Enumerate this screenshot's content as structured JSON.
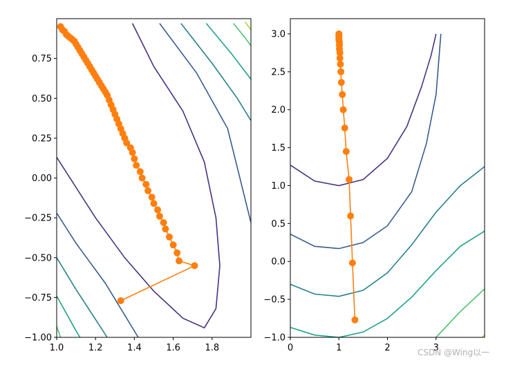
{
  "chart_data": [
    {
      "type": "line",
      "title": "",
      "xlabel": "",
      "ylabel": "",
      "xlim": [
        1.0,
        2.0
      ],
      "ylim": [
        -1.0,
        1.0
      ],
      "xticks": [
        1.0,
        1.2,
        1.4,
        1.6,
        1.8
      ],
      "xtick_labels": [
        "1.0",
        "1.2",
        "1.4",
        "1.6",
        "1.8"
      ],
      "yticks": [
        -1.0,
        -0.75,
        -0.5,
        -0.25,
        0.0,
        0.25,
        0.5,
        0.75
      ],
      "ytick_labels": [
        "−1.00",
        "−0.75",
        "−0.50",
        "−0.25",
        "0.00",
        "0.25",
        "0.50",
        "0.75"
      ],
      "grid": false,
      "contours": [
        {
          "color": "#46327e",
          "points": [
            [
              1.0,
              0.13
            ],
            [
              1.2,
              -0.25
            ],
            [
              1.35,
              -0.5
            ],
            [
              1.5,
              -0.71
            ],
            [
              1.65,
              -0.88
            ],
            [
              1.76,
              -0.94
            ],
            [
              1.82,
              -0.82
            ],
            [
              1.84,
              -0.55
            ],
            [
              1.82,
              -0.25
            ],
            [
              1.76,
              0.1
            ],
            [
              1.65,
              0.42
            ],
            [
              1.5,
              0.7
            ],
            [
              1.39,
              0.97
            ]
          ]
        },
        {
          "color": "#365c8d",
          "points": [
            [
              1.0,
              -0.22
            ],
            [
              1.1,
              -0.41
            ],
            [
              1.25,
              -0.66
            ],
            [
              1.42,
              -1.0
            ]
          ]
        },
        {
          "color": "#365c8d",
          "points": [
            [
              1.53,
              0.97
            ],
            [
              1.72,
              0.66
            ],
            [
              1.88,
              0.31
            ],
            [
              2.0,
              -0.28
            ]
          ]
        },
        {
          "color": "#277f8e",
          "points": [
            [
              1.0,
              -0.5
            ],
            [
              1.1,
              -0.7
            ],
            [
              1.26,
              -1.0
            ]
          ]
        },
        {
          "color": "#277f8e",
          "points": [
            [
              1.64,
              0.97
            ],
            [
              1.8,
              0.72
            ],
            [
              1.93,
              0.5
            ],
            [
              2.0,
              0.36
            ]
          ]
        },
        {
          "color": "#1fa187",
          "points": [
            [
              1.0,
              -0.74
            ],
            [
              1.1,
              -0.96
            ],
            [
              1.12,
              -1.0
            ]
          ]
        },
        {
          "color": "#1fa187",
          "points": [
            [
              1.77,
              0.97
            ],
            [
              1.9,
              0.78
            ],
            [
              2.0,
              0.62
            ]
          ]
        },
        {
          "color": "#4ac16d",
          "points": [
            [
              1.0,
              -0.93
            ],
            [
              1.02,
              -1.0
            ]
          ]
        },
        {
          "color": "#4ac16d",
          "points": [
            [
              1.91,
              0.97
            ],
            [
              1.97,
              0.88
            ],
            [
              2.0,
              0.83
            ]
          ]
        },
        {
          "color": "#a0da39",
          "points": [
            [
              1.97,
              0.98
            ],
            [
              2.0,
              0.93
            ]
          ]
        }
      ],
      "series": [
        {
          "color": "#ff7f0e",
          "x": [
            1.33,
            1.71,
            1.63,
            1.62,
            1.6,
            1.58,
            1.56,
            1.55,
            1.53,
            1.52,
            1.5,
            1.49,
            1.47,
            1.46,
            1.44,
            1.43,
            1.41,
            1.4,
            1.39,
            1.38,
            1.36,
            1.35,
            1.34,
            1.33,
            1.32,
            1.31,
            1.3,
            1.29,
            1.28,
            1.27,
            1.26,
            1.25,
            1.24,
            1.23,
            1.22,
            1.21,
            1.2,
            1.19,
            1.18,
            1.17,
            1.16,
            1.15,
            1.14,
            1.13,
            1.12,
            1.11,
            1.1,
            1.09,
            1.08,
            1.07,
            1.06,
            1.05,
            1.04,
            1.03,
            1.02
          ],
          "y": [
            -0.77,
            -0.55,
            -0.52,
            -0.47,
            -0.42,
            -0.37,
            -0.32,
            -0.28,
            -0.24,
            -0.2,
            -0.16,
            -0.12,
            -0.08,
            -0.04,
            0.0,
            0.04,
            0.08,
            0.12,
            0.16,
            0.19,
            0.22,
            0.25,
            0.28,
            0.31,
            0.34,
            0.37,
            0.4,
            0.43,
            0.46,
            0.49,
            0.52,
            0.54,
            0.56,
            0.58,
            0.6,
            0.62,
            0.64,
            0.66,
            0.68,
            0.7,
            0.72,
            0.74,
            0.76,
            0.78,
            0.8,
            0.82,
            0.84,
            0.86,
            0.87,
            0.88,
            0.89,
            0.9,
            0.92,
            0.93,
            0.95
          ]
        }
      ]
    },
    {
      "type": "line",
      "title": "",
      "xlabel": "",
      "ylabel": "",
      "xlim": [
        0.0,
        4.0
      ],
      "ylim": [
        -1.0,
        3.2
      ],
      "xticks": [
        0,
        1,
        2,
        3
      ],
      "xtick_labels": [
        "0",
        "1",
        "2",
        "3"
      ],
      "yticks": [
        -1.0,
        -0.5,
        0.0,
        0.5,
        1.0,
        1.5,
        2.0,
        2.5,
        3.0
      ],
      "ytick_labels": [
        "−1.0",
        "−0.5",
        "0.0",
        "0.5",
        "1.0",
        "1.5",
        "2.0",
        "2.5",
        "3.0"
      ],
      "grid": false,
      "contours": [
        {
          "color": "#46327e",
          "points": [
            [
              0.0,
              1.27
            ],
            [
              0.5,
              1.06
            ],
            [
              1.0,
              1.0
            ],
            [
              1.5,
              1.08
            ],
            [
              2.0,
              1.36
            ],
            [
              2.4,
              1.78
            ],
            [
              2.7,
              2.3
            ],
            [
              2.9,
              2.72
            ],
            [
              3.0,
              3.0
            ]
          ]
        },
        {
          "color": "#365c8d",
          "points": [
            [
              0.0,
              0.36
            ],
            [
              0.5,
              0.2
            ],
            [
              1.0,
              0.17
            ],
            [
              1.5,
              0.25
            ],
            [
              2.0,
              0.47
            ],
            [
              2.5,
              0.92
            ],
            [
              2.8,
              1.55
            ],
            [
              3.0,
              2.2
            ],
            [
              3.05,
              2.6
            ],
            [
              3.1,
              3.0
            ]
          ]
        },
        {
          "color": "#277f8e",
          "points": [
            [
              0.0,
              -0.3
            ],
            [
              0.5,
              -0.43
            ],
            [
              1.0,
              -0.46
            ],
            [
              1.5,
              -0.38
            ],
            [
              2.0,
              -0.15
            ],
            [
              2.5,
              0.22
            ],
            [
              3.0,
              0.65
            ],
            [
              3.5,
              1.0
            ],
            [
              4.0,
              1.25
            ]
          ]
        },
        {
          "color": "#1fa187",
          "points": [
            [
              0.0,
              -0.87
            ],
            [
              0.5,
              -0.97
            ],
            [
              1.0,
              -1.0
            ],
            [
              1.5,
              -0.93
            ],
            [
              2.0,
              -0.75
            ],
            [
              2.5,
              -0.47
            ],
            [
              3.0,
              -0.12
            ],
            [
              3.5,
              0.2
            ],
            [
              4.0,
              0.4
            ]
          ]
        },
        {
          "color": "#4ac16d",
          "points": [
            [
              3.0,
              -1.0
            ],
            [
              3.5,
              -0.66
            ],
            [
              4.0,
              -0.36
            ]
          ]
        },
        {
          "color": "#a0da39",
          "points": [
            [
              3.95,
              -1.0
            ],
            [
              4.0,
              -0.97
            ]
          ]
        }
      ],
      "series": [
        {
          "color": "#ff7f0e",
          "x": [
            1.33,
            1.28,
            1.24,
            1.21,
            1.15,
            1.12,
            1.09,
            1.07,
            1.05,
            1.04,
            1.03,
            1.02,
            1.02,
            1.01,
            1.01,
            1.01,
            1.0,
            1.0,
            1.0,
            1.0,
            1.0,
            1.0
          ],
          "y": [
            -0.77,
            -0.02,
            0.6,
            1.08,
            1.45,
            1.76,
            2.0,
            2.2,
            2.36,
            2.5,
            2.6,
            2.68,
            2.75,
            2.8,
            2.85,
            2.89,
            2.92,
            2.94,
            2.96,
            2.98,
            2.99,
            3.0
          ]
        }
      ]
    }
  ],
  "watermark": "CSDN @Wing以一"
}
